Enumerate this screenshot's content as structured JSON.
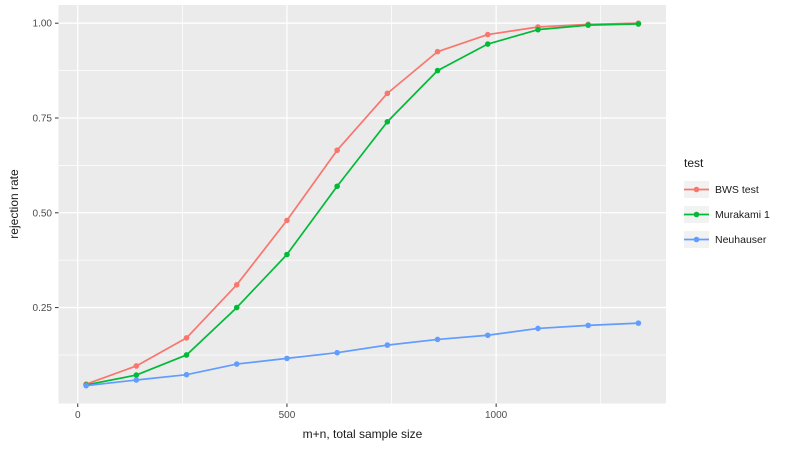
{
  "colors": {
    "background": "#FFFFFF",
    "panel_bg": "#EBEBEB",
    "grid": "#FFFFFF",
    "tick": "#333333",
    "tick_label": "#4D4D4D",
    "axis_title": "#1A1A1A",
    "legend_key_bg": "#F2F2F2"
  },
  "chart_data": {
    "type": "line",
    "title": "",
    "xlabel": "m+n, total sample size",
    "ylabel": "rejection rate",
    "legend_title": "test",
    "legend_position": "right",
    "grid": true,
    "xlim": [
      -46,
      1406
    ],
    "ylim": [
      -0.003,
      1.048
    ],
    "x": [
      20,
      140,
      260,
      380,
      500,
      620,
      740,
      860,
      980,
      1100,
      1220,
      1340
    ],
    "series": [
      {
        "name": "BWS test",
        "color": "#F8766D",
        "values": [
          0.048,
          0.096,
          0.17,
          0.31,
          0.48,
          0.665,
          0.815,
          0.925,
          0.97,
          0.99,
          0.997,
          1.0
        ]
      },
      {
        "name": "Murakami 1",
        "color": "#00BA38",
        "values": [
          0.046,
          0.072,
          0.125,
          0.25,
          0.39,
          0.57,
          0.74,
          0.875,
          0.945,
          0.983,
          0.995,
          0.998
        ]
      },
      {
        "name": "Neuhauser",
        "color": "#619CFF",
        "values": [
          0.044,
          0.059,
          0.073,
          0.101,
          0.116,
          0.131,
          0.151,
          0.166,
          0.177,
          0.195,
          0.203,
          0.209
        ]
      }
    ],
    "x_ticks": [
      {
        "value": 0,
        "label": "0"
      },
      {
        "value": 500,
        "label": "500"
      },
      {
        "value": 1000,
        "label": "1000"
      }
    ],
    "y_ticks": [
      {
        "value": 0.25,
        "label": "0.25"
      },
      {
        "value": 0.5,
        "label": "0.50"
      },
      {
        "value": 0.75,
        "label": "0.75"
      },
      {
        "value": 1.0,
        "label": "1.00"
      }
    ],
    "x_minor": [
      250,
      750,
      1250
    ],
    "y_minor": [
      0.125,
      0.375,
      0.625,
      0.875
    ]
  }
}
